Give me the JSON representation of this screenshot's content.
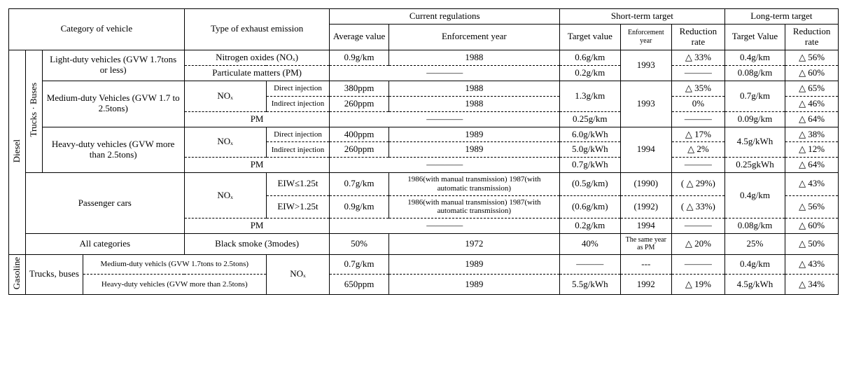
{
  "hdr": {
    "category": "Category of vehicle",
    "emission": "Type of exhaust emission",
    "current": "Current regulations",
    "short": "Short-term target",
    "long": "Long-term target",
    "avg": "Average value",
    "enfY": "Enforcement year",
    "tv": "Target value",
    "seyS": "Enforcement year",
    "red": "Reduction rate",
    "ltv": "Target Value",
    "lred": "Reduction rate"
  },
  "fuel": {
    "diesel": "Diesel",
    "gasoline": "Gasoline"
  },
  "tb": "Trucks · Buses",
  "cat": {
    "light": "Light-duty vehicles (GVW 1.7tons or less)",
    "medium": "Medium-duty Vehicles (GVW 1.7 to 2.5tons)",
    "heavy": "Heavy-duty vehicles (GVW more than 2.5tons)",
    "passenger": "Passenger cars",
    "all": "All categories",
    "gTB": "Trucks, buses",
    "gMed": "Medium-duty vehicls (GVW 1.7tons to 2.5tons)",
    "gHvy": "Heavy-duty vehicles (GVW more than 2.5tons)"
  },
  "em": {
    "noxFull": "Nitrogen oxides (NOₓ)",
    "pmFull": "Particulate matters (PM)",
    "nox": "NOₓ",
    "pm": "PM",
    "direct": "Direct injection",
    "indirect": "Indirect injection",
    "eiwLe": "EIW≤1.25t",
    "eiwGt": "EIW>1.25t",
    "blacksmoke": "Black smoke (3modes)"
  },
  "dash": "―――",
  "dashLong": "――――",
  "trans": "1986(with manual transmission) 1987(with automatic transmission)",
  "sameYear": "The same year as PM",
  "r": {
    "r1": {
      "avg": "0.9g/km",
      "enf": "1988",
      "tv": "0.6g/km",
      "sey": "1993",
      "red": "△ 33%",
      "ltv": "0.4g/km",
      "lred": "△ 56%"
    },
    "r2": {
      "tv": "0.2g/km",
      "ltv": "0.08g/km",
      "lred": "△ 60%"
    },
    "r3": {
      "avg": "380ppm",
      "enf": "1988",
      "tv": "1.3g/km",
      "sey": "1993",
      "red": "△ 35%",
      "ltv": "0.7g/km",
      "lred": "△ 65%"
    },
    "r4": {
      "avg": "260ppm",
      "enf": "1988",
      "red": "0%",
      "lred": "△ 46%"
    },
    "r5": {
      "tv": "0.25g/km",
      "ltv": "0.09g/km",
      "lred": "△ 64%"
    },
    "r6": {
      "avg": "400ppm",
      "enf": "1989",
      "tv": "6.0g/kWh",
      "sey": "1994",
      "red": "△ 17%",
      "ltv": "4.5g/kWh",
      "lred": "△ 38%"
    },
    "r7": {
      "avg": "260ppm",
      "enf": "1989",
      "tv": "5.0g/kWh",
      "red": "△ 2%",
      "lred": "△ 12%"
    },
    "r8": {
      "tv": "0.7g/kWh",
      "ltv": "0.25gkWh",
      "lred": "△ 64%"
    },
    "r9": {
      "avg": "0.7g/km",
      "tv": "(0.5g/km)",
      "sey": "(1990)",
      "red": "( △ 29%)",
      "ltv": "0.4g/km",
      "lred": "△ 43%"
    },
    "r10": {
      "avg": "0.9g/km",
      "tv": "(0.6g/km)",
      "sey": "(1992)",
      "red": "( △ 33%)",
      "lred": "△ 56%"
    },
    "r11": {
      "tv": "0.2g/km",
      "sey": "1994",
      "ltv": "0.08g/km",
      "lred": "△ 60%"
    },
    "r12": {
      "avg": "50%",
      "enf": "1972",
      "tv": "40%",
      "red": "△ 20%",
      "ltv": "25%",
      "lred": "△ 50%"
    },
    "r13": {
      "avg": "0.7g/km",
      "enf": "1989",
      "ltv": "0.4g/km",
      "lred": "△ 43%"
    },
    "r14": {
      "avg": "650ppm",
      "enf": "1989",
      "tv": "5.5g/kWh",
      "sey": "1992",
      "red": "△ 19%",
      "ltv": "4.5g/kWh",
      "lred": "△ 34%"
    }
  }
}
